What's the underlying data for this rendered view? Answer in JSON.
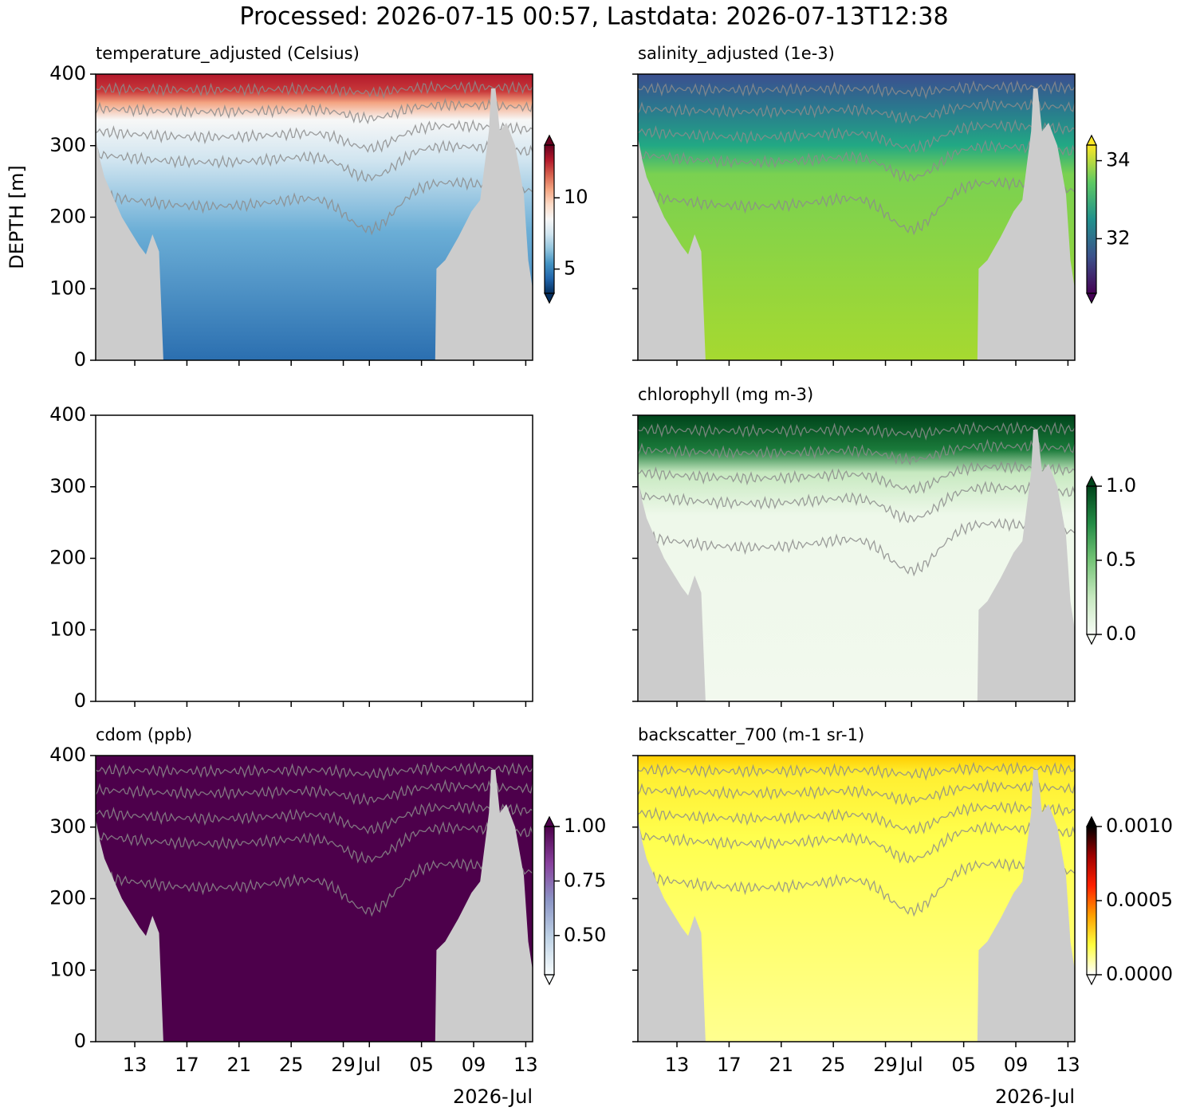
{
  "title": "Processed: 2026-07-15 00:57, Lastdata: 2026-07-13T12:38",
  "shared_axes": {
    "ylabel": "DEPTH [m]",
    "xlabel": "2026-Jul",
    "ylim": [
      400,
      0
    ],
    "yticks": [
      0,
      100,
      200,
      300,
      400
    ],
    "xlim": [
      "2026-06-10T00:00",
      "2026-07-13T12:38"
    ],
    "xticks": [
      {
        "value": "2026-06-13T00:00",
        "label": "13"
      },
      {
        "value": "2026-06-17T00:00",
        "label": "17"
      },
      {
        "value": "2026-06-21T00:00",
        "label": "21"
      },
      {
        "value": "2026-06-25T00:00",
        "label": "25"
      },
      {
        "value": "2026-06-29T00:00",
        "label": "29"
      },
      {
        "value": "2026-07-01T00:00",
        "label": "Jul"
      },
      {
        "value": "2026-07-05T00:00",
        "label": "05"
      },
      {
        "value": "2026-07-09T00:00",
        "label": "09"
      },
      {
        "value": "2026-07-13T00:00",
        "label": "13"
      }
    ]
  },
  "chart_data": [
    {
      "type": "heatmap",
      "title": "temperature_adjusted (Celsius)",
      "colorbar": {
        "clim": [
          3.3,
          13.7
        ],
        "ticks": [
          5,
          10
        ],
        "colors": [
          "#053061",
          "#2166ac",
          "#4393c3",
          "#92c5de",
          "#d1e5f0",
          "#f7f7f7",
          "#fddbc7",
          "#f4a582",
          "#d6604d",
          "#b2182b",
          "#67001f"
        ]
      }
    },
    {
      "type": "heatmap",
      "title": "salinity_adjusted (1e-3)",
      "colorbar": {
        "clim": [
          30.6,
          34.4
        ],
        "ticks": [
          32,
          34
        ],
        "colors": [
          "#440154",
          "#3b528b",
          "#21918c",
          "#5ec962",
          "#fde725"
        ]
      }
    },
    {
      "type": "heatmap"
    },
    {
      "type": "heatmap",
      "title": "chlorophyll (mg m-3)",
      "colorbar": {
        "clim": [
          0,
          1
        ],
        "ticks": [
          {
            "value": 0,
            "label": "0.0"
          },
          0.5,
          {
            "value": 1,
            "label": "1.0"
          }
        ],
        "colors": [
          "#f7fcf5",
          "#c7e9c0",
          "#74c476",
          "#238b45",
          "#00441b"
        ]
      }
    },
    {
      "type": "heatmap",
      "title": "cdom (ppb)",
      "colorbar": {
        "clim": [
          0.32,
          1.0
        ],
        "ticks": [
          {
            "value": 0.5,
            "label": "0.50"
          },
          0.75,
          {
            "value": 1,
            "label": "1.00"
          }
        ],
        "colors": [
          "#f7fcfd",
          "#bfd3e6",
          "#8c96c6",
          "#88419d",
          "#4d004b"
        ]
      }
    },
    {
      "type": "heatmap",
      "title": "backscatter_700 (m-1 sr-1)",
      "colorbar": {
        "clim": [
          0,
          0.001
        ],
        "ticks": [
          {
            "value": 0,
            "label": "0.0000"
          },
          {
            "value": 0.0005,
            "label": "0.0005"
          },
          {
            "value": 0.001,
            "label": "0.0010"
          }
        ],
        "colors": [
          "#ffffff",
          "#ffff40",
          "#ffa000",
          "#ff2000",
          "#a00000",
          "#000000"
        ]
      }
    }
  ]
}
